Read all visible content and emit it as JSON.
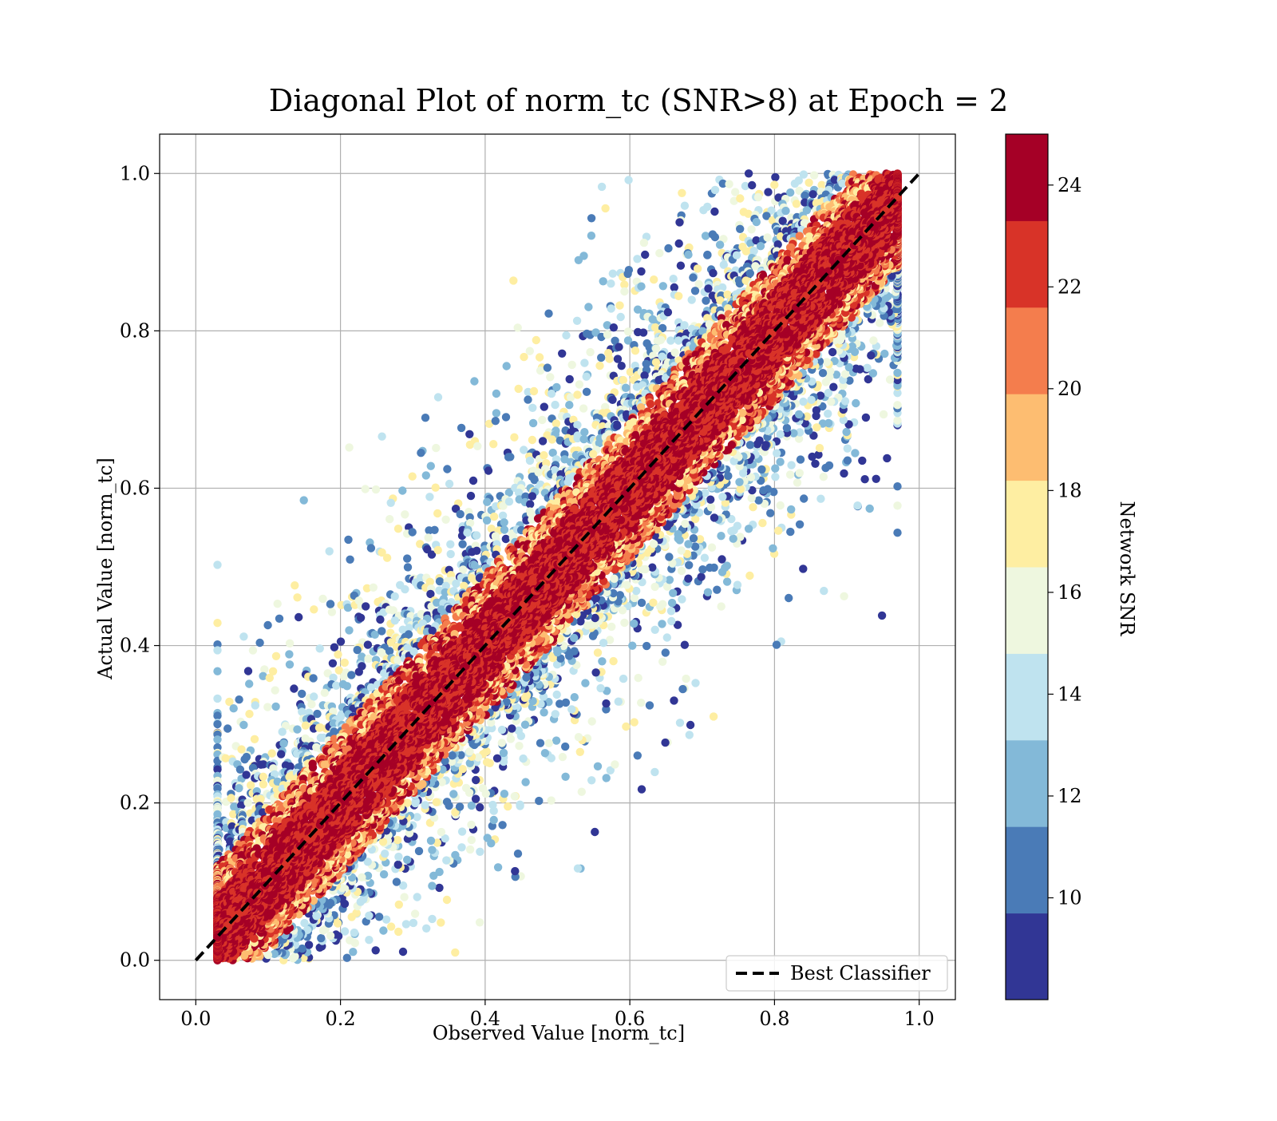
{
  "chart_data": {
    "type": "scatter",
    "title": "Diagonal Plot of norm_tc (SNR>8) at Epoch = 2",
    "xlabel": "Observed Value [norm_tc]",
    "ylabel": "Actual Value [norm_tc]",
    "xlim": [
      -0.05,
      1.05
    ],
    "ylim": [
      -0.05,
      1.05
    ],
    "xticks": [
      "0.0",
      "0.2",
      "0.4",
      "0.6",
      "0.8",
      "1.0"
    ],
    "yticks": [
      "0.0",
      "0.2",
      "0.4",
      "0.6",
      "0.8",
      "1.0"
    ],
    "grid": true,
    "legend": {
      "placement": "lower-right",
      "entries": [
        "Best Classifier"
      ]
    },
    "reference_line": {
      "name": "Best Classifier",
      "x": [
        0,
        1
      ],
      "y": [
        0,
        1
      ],
      "style": "dashed",
      "color": "#000000"
    },
    "colorbar": {
      "label": "Network SNR",
      "range": [
        8,
        25
      ],
      "ticks": [
        "10",
        "12",
        "14",
        "16",
        "18",
        "20",
        "22",
        "24"
      ],
      "tick_values": [
        10,
        12,
        14,
        16,
        18,
        20,
        22,
        24
      ],
      "colors": [
        "#313695",
        "#4a7bb7",
        "#83b9d8",
        "#bfe3ef",
        "#eef7df",
        "#feeea2",
        "#fdbd71",
        "#f47d4d",
        "#d83328",
        "#a50026"
      ]
    },
    "points_summary": {
      "count_estimate": "tens of thousands",
      "distribution": "concentrated along y = x with high SNR (dark red) near the diagonal; lower SNR (blue) points scattered further from the diagonal",
      "y_range": [
        0,
        1
      ],
      "x_range": [
        0.03,
        0.97
      ]
    }
  }
}
